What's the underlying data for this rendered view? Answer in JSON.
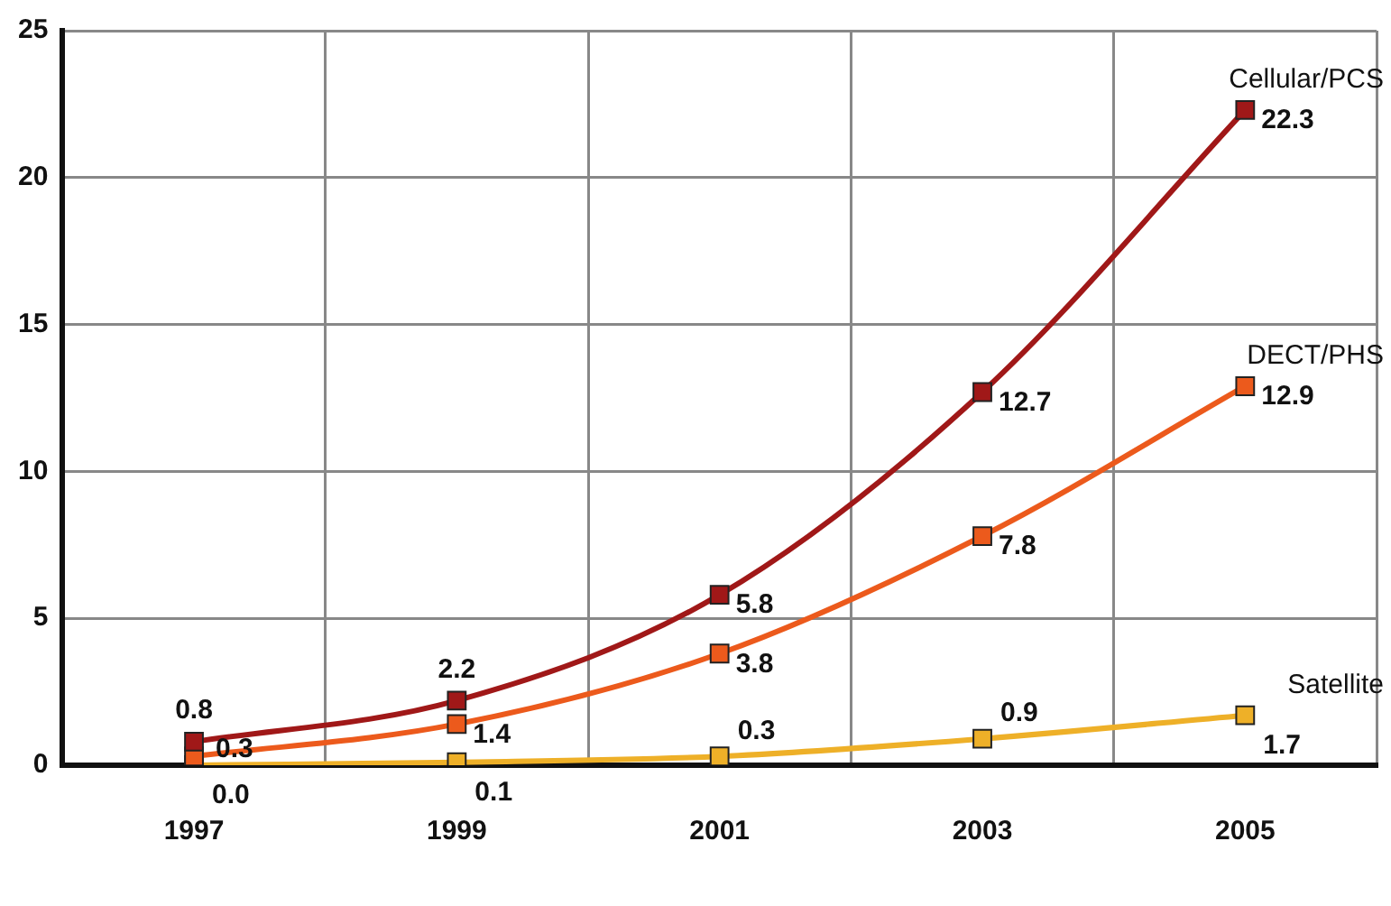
{
  "chart_data": {
    "type": "line",
    "categories": [
      "1997",
      "1999",
      "2001",
      "2003",
      "2005"
    ],
    "series": [
      {
        "name": "Cellular/PCS",
        "color": "#a01818",
        "values": [
          0.8,
          2.2,
          5.8,
          12.7,
          22.3
        ],
        "value_labels": [
          "0.8",
          "2.2",
          "5.8",
          "12.7",
          "22.3"
        ]
      },
      {
        "name": "DECT/PHS",
        "color": "#ec5a1c",
        "values": [
          0.3,
          1.4,
          3.8,
          7.8,
          12.9
        ],
        "value_labels": [
          "0.3",
          "1.4",
          "3.8",
          "7.8",
          "12.9"
        ]
      },
      {
        "name": "Satellite",
        "color": "#eeb028",
        "values": [
          0.0,
          0.1,
          0.3,
          0.9,
          1.7
        ],
        "value_labels": [
          "0.0",
          "0.1",
          "0.3",
          "0.9",
          "1.7"
        ]
      }
    ],
    "ylim": [
      0,
      25
    ],
    "yticks": [
      0,
      5,
      10,
      15,
      20,
      25
    ],
    "grid": true,
    "legend": false,
    "marker": "square",
    "line_style": "solid"
  }
}
